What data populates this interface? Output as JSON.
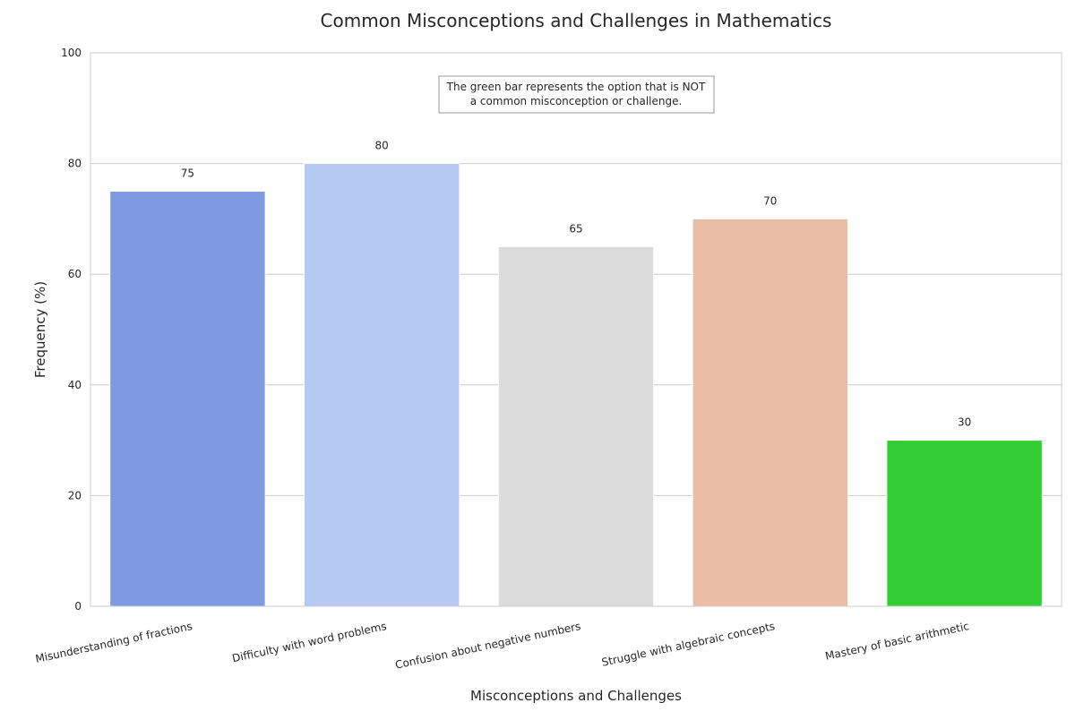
{
  "chart_data": {
    "type": "bar",
    "title": "Common Misconceptions and Challenges in Mathematics",
    "xlabel": "Misconceptions and Challenges",
    "ylabel": "Frequency (%)",
    "ylim": [
      0,
      100
    ],
    "yticks": [
      0,
      20,
      40,
      60,
      80,
      100
    ],
    "grid": true,
    "categories": [
      "Misunderstanding of fractions",
      "Difficulty with word problems",
      "Confusion about negative numbers",
      "Struggle with algebraic concepts",
      "Mastery of basic arithmetic"
    ],
    "values": [
      75,
      80,
      65,
      70,
      30
    ],
    "colors": [
      "#7f9ae3",
      "#b5c9f3",
      "#dcdcdc",
      "#ebbca6",
      "#32cd32"
    ],
    "annotation": {
      "lines": [
        "The green bar represents the option that is NOT",
        "a common misconception or challenge."
      ]
    }
  }
}
